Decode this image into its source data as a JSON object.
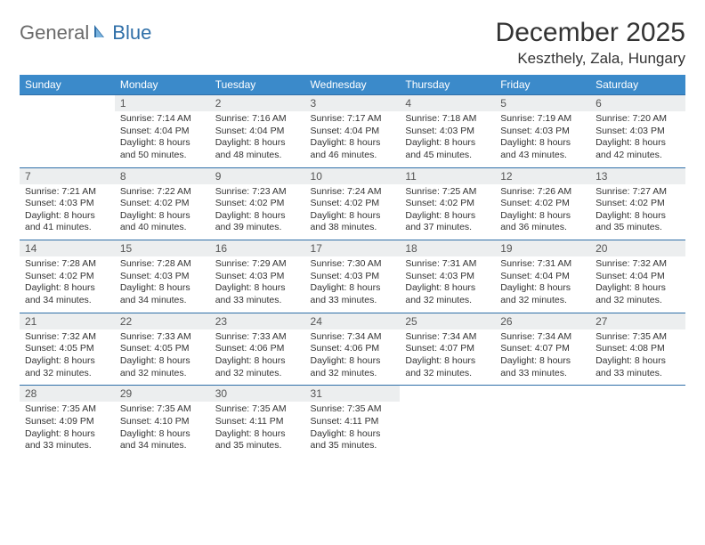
{
  "logo": {
    "general": "General",
    "blue": "Blue"
  },
  "title": "December 2025",
  "location": "Keszthely, Zala, Hungary",
  "colors": {
    "header_bg": "#3b8aca",
    "header_text": "#ffffff",
    "daynum_bg": "#eceeef",
    "rule": "#2f6fa8",
    "logo_gray": "#6a6a6a",
    "logo_blue": "#2f6fa8"
  },
  "dow": [
    "Sunday",
    "Monday",
    "Tuesday",
    "Wednesday",
    "Thursday",
    "Friday",
    "Saturday"
  ],
  "weeks": [
    [
      null,
      {
        "n": "1",
        "sr": "Sunrise: 7:14 AM",
        "ss": "Sunset: 4:04 PM",
        "dl": "Daylight: 8 hours and 50 minutes."
      },
      {
        "n": "2",
        "sr": "Sunrise: 7:16 AM",
        "ss": "Sunset: 4:04 PM",
        "dl": "Daylight: 8 hours and 48 minutes."
      },
      {
        "n": "3",
        "sr": "Sunrise: 7:17 AM",
        "ss": "Sunset: 4:04 PM",
        "dl": "Daylight: 8 hours and 46 minutes."
      },
      {
        "n": "4",
        "sr": "Sunrise: 7:18 AM",
        "ss": "Sunset: 4:03 PM",
        "dl": "Daylight: 8 hours and 45 minutes."
      },
      {
        "n": "5",
        "sr": "Sunrise: 7:19 AM",
        "ss": "Sunset: 4:03 PM",
        "dl": "Daylight: 8 hours and 43 minutes."
      },
      {
        "n": "6",
        "sr": "Sunrise: 7:20 AM",
        "ss": "Sunset: 4:03 PM",
        "dl": "Daylight: 8 hours and 42 minutes."
      }
    ],
    [
      {
        "n": "7",
        "sr": "Sunrise: 7:21 AM",
        "ss": "Sunset: 4:03 PM",
        "dl": "Daylight: 8 hours and 41 minutes."
      },
      {
        "n": "8",
        "sr": "Sunrise: 7:22 AM",
        "ss": "Sunset: 4:02 PM",
        "dl": "Daylight: 8 hours and 40 minutes."
      },
      {
        "n": "9",
        "sr": "Sunrise: 7:23 AM",
        "ss": "Sunset: 4:02 PM",
        "dl": "Daylight: 8 hours and 39 minutes."
      },
      {
        "n": "10",
        "sr": "Sunrise: 7:24 AM",
        "ss": "Sunset: 4:02 PM",
        "dl": "Daylight: 8 hours and 38 minutes."
      },
      {
        "n": "11",
        "sr": "Sunrise: 7:25 AM",
        "ss": "Sunset: 4:02 PM",
        "dl": "Daylight: 8 hours and 37 minutes."
      },
      {
        "n": "12",
        "sr": "Sunrise: 7:26 AM",
        "ss": "Sunset: 4:02 PM",
        "dl": "Daylight: 8 hours and 36 minutes."
      },
      {
        "n": "13",
        "sr": "Sunrise: 7:27 AM",
        "ss": "Sunset: 4:02 PM",
        "dl": "Daylight: 8 hours and 35 minutes."
      }
    ],
    [
      {
        "n": "14",
        "sr": "Sunrise: 7:28 AM",
        "ss": "Sunset: 4:02 PM",
        "dl": "Daylight: 8 hours and 34 minutes."
      },
      {
        "n": "15",
        "sr": "Sunrise: 7:28 AM",
        "ss": "Sunset: 4:03 PM",
        "dl": "Daylight: 8 hours and 34 minutes."
      },
      {
        "n": "16",
        "sr": "Sunrise: 7:29 AM",
        "ss": "Sunset: 4:03 PM",
        "dl": "Daylight: 8 hours and 33 minutes."
      },
      {
        "n": "17",
        "sr": "Sunrise: 7:30 AM",
        "ss": "Sunset: 4:03 PM",
        "dl": "Daylight: 8 hours and 33 minutes."
      },
      {
        "n": "18",
        "sr": "Sunrise: 7:31 AM",
        "ss": "Sunset: 4:03 PM",
        "dl": "Daylight: 8 hours and 32 minutes."
      },
      {
        "n": "19",
        "sr": "Sunrise: 7:31 AM",
        "ss": "Sunset: 4:04 PM",
        "dl": "Daylight: 8 hours and 32 minutes."
      },
      {
        "n": "20",
        "sr": "Sunrise: 7:32 AM",
        "ss": "Sunset: 4:04 PM",
        "dl": "Daylight: 8 hours and 32 minutes."
      }
    ],
    [
      {
        "n": "21",
        "sr": "Sunrise: 7:32 AM",
        "ss": "Sunset: 4:05 PM",
        "dl": "Daylight: 8 hours and 32 minutes."
      },
      {
        "n": "22",
        "sr": "Sunrise: 7:33 AM",
        "ss": "Sunset: 4:05 PM",
        "dl": "Daylight: 8 hours and 32 minutes."
      },
      {
        "n": "23",
        "sr": "Sunrise: 7:33 AM",
        "ss": "Sunset: 4:06 PM",
        "dl": "Daylight: 8 hours and 32 minutes."
      },
      {
        "n": "24",
        "sr": "Sunrise: 7:34 AM",
        "ss": "Sunset: 4:06 PM",
        "dl": "Daylight: 8 hours and 32 minutes."
      },
      {
        "n": "25",
        "sr": "Sunrise: 7:34 AM",
        "ss": "Sunset: 4:07 PM",
        "dl": "Daylight: 8 hours and 32 minutes."
      },
      {
        "n": "26",
        "sr": "Sunrise: 7:34 AM",
        "ss": "Sunset: 4:07 PM",
        "dl": "Daylight: 8 hours and 33 minutes."
      },
      {
        "n": "27",
        "sr": "Sunrise: 7:35 AM",
        "ss": "Sunset: 4:08 PM",
        "dl": "Daylight: 8 hours and 33 minutes."
      }
    ],
    [
      {
        "n": "28",
        "sr": "Sunrise: 7:35 AM",
        "ss": "Sunset: 4:09 PM",
        "dl": "Daylight: 8 hours and 33 minutes."
      },
      {
        "n": "29",
        "sr": "Sunrise: 7:35 AM",
        "ss": "Sunset: 4:10 PM",
        "dl": "Daylight: 8 hours and 34 minutes."
      },
      {
        "n": "30",
        "sr": "Sunrise: 7:35 AM",
        "ss": "Sunset: 4:11 PM",
        "dl": "Daylight: 8 hours and 35 minutes."
      },
      {
        "n": "31",
        "sr": "Sunrise: 7:35 AM",
        "ss": "Sunset: 4:11 PM",
        "dl": "Daylight: 8 hours and 35 minutes."
      },
      null,
      null,
      null
    ]
  ]
}
